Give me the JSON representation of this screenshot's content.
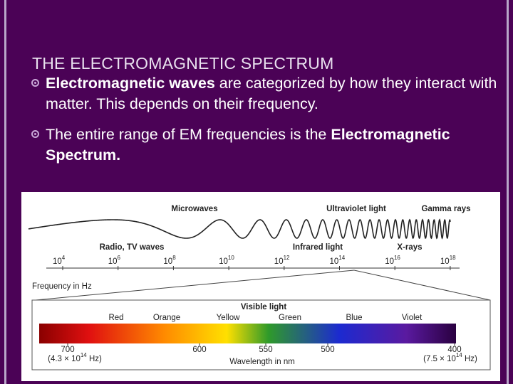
{
  "slide": {
    "title": "THE ELECTROMAGNETIC SPECTRUM",
    "bullets": [
      {
        "bold": "Electromagnetic waves",
        "text": " are categorized by how they interact with matter.  This depends on their frequency."
      },
      {
        "text": "The entire range of EM frequencies is the ",
        "bold": "Electromagnetic Spectrum."
      }
    ]
  },
  "figure": {
    "top_labels": [
      "Microwaves",
      "Ultraviolet light",
      "Gamma rays"
    ],
    "bottom_labels": [
      "Radio, TV waves",
      "Infrared light",
      "X-rays"
    ],
    "frequency_ticks": [
      {
        "base": "10",
        "exp": "4"
      },
      {
        "base": "10",
        "exp": "6"
      },
      {
        "base": "10",
        "exp": "8"
      },
      {
        "base": "10",
        "exp": "10"
      },
      {
        "base": "10",
        "exp": "12"
      },
      {
        "base": "10",
        "exp": "14"
      },
      {
        "base": "10",
        "exp": "16"
      },
      {
        "base": "10",
        "exp": "18"
      }
    ],
    "frequency_label": "Frequency in Hz",
    "visible_title": "Visible light",
    "color_names": [
      "Red",
      "Orange",
      "Yellow",
      "Green",
      "Blue",
      "Violet"
    ],
    "wavelength_ticks": [
      "700",
      "600",
      "550",
      "500",
      "400"
    ],
    "wavelength_notes": [
      {
        "before": "(4.3 × 10",
        "exp": "14",
        "after": " Hz)"
      },
      {
        "before": "(7.5 × 10",
        "exp": "14",
        "after": " Hz)"
      }
    ],
    "wavelength_label": "Wavelength in nm"
  }
}
